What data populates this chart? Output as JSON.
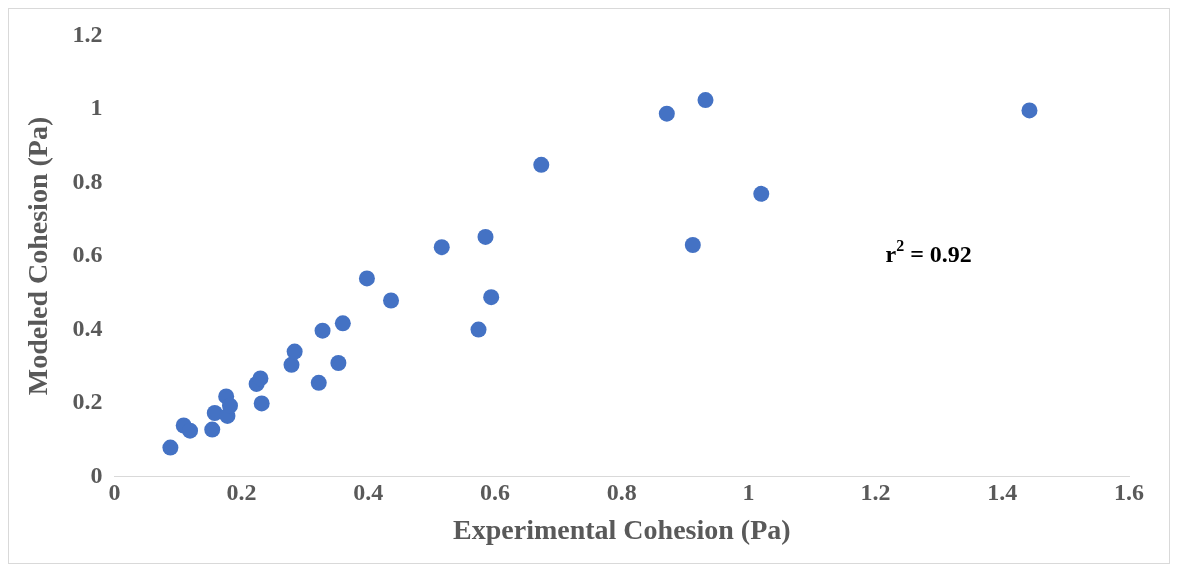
{
  "chart_data": {
    "type": "scatter",
    "xlabel": "Experimental Cohesion (Pa)",
    "ylabel": "Modeled Cohesion (Pa)",
    "annotations": [
      "r$^{2}$ = 0.92"
    ],
    "x": [
      0.088,
      0.109,
      0.119,
      0.154,
      0.158,
      0.176,
      0.178,
      0.182,
      0.224,
      0.23,
      0.232,
      0.279,
      0.284,
      0.322,
      0.328,
      0.353,
      0.36,
      0.398,
      0.436,
      0.516,
      0.574,
      0.585,
      0.594,
      0.673,
      0.871,
      0.912,
      0.932,
      1.02,
      1.443
    ],
    "series": [
      {
        "color": "#4472c4",
        "values": [
          0.079,
          0.139,
          0.125,
          0.128,
          0.173,
          0.218,
          0.165,
          0.193,
          0.252,
          0.267,
          0.199,
          0.304,
          0.34,
          0.255,
          0.397,
          0.309,
          0.417,
          0.539,
          0.479,
          0.624,
          0.4,
          0.652,
          0.488,
          0.848,
          0.987,
          0.63,
          1.024,
          0.769,
          0.996
        ]
      }
    ],
    "xlim": [
      0,
      1.6
    ],
    "xticks": [
      0,
      0.2,
      0.4,
      0.6,
      0.8,
      1,
      1.2,
      1.4,
      1.6
    ],
    "ylim": [
      0,
      1.2
    ],
    "yticks": [
      0,
      0.2,
      0.4,
      0.6,
      0.8,
      1,
      1.2
    ],
    "grid": false,
    "legend": false,
    "marker": "circle"
  }
}
